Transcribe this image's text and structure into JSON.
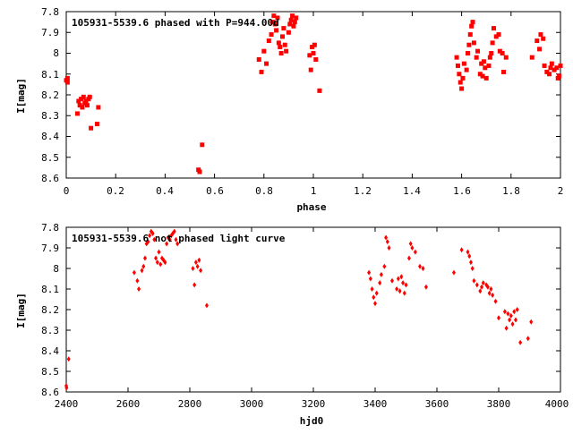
{
  "chart_data": [
    {
      "type": "scatter",
      "title": "105931-5539.6 phased with P=944.00d",
      "xlabel": "phase",
      "ylabel": "I[mag]",
      "xlim": [
        0,
        2
      ],
      "ylim": [
        8.6,
        7.8
      ],
      "y_inverted": true,
      "grid": false,
      "marker_color": "#ff0000",
      "marker": "filled square",
      "xticks": [
        "0",
        "0.2",
        "0.4",
        "0.6",
        "0.8",
        "1",
        "1.2",
        "1.4",
        "1.6",
        "1.8",
        "2"
      ],
      "yticks": [
        "7.8",
        "7.9",
        "8",
        "8.1",
        "8.2",
        "8.3",
        "8.4",
        "8.5",
        "8.6"
      ],
      "points": [
        [
          0.0,
          8.13
        ],
        [
          0.005,
          8.14
        ],
        [
          0.005,
          8.12
        ],
        [
          0.045,
          8.29
        ],
        [
          0.05,
          8.23
        ],
        [
          0.055,
          8.25
        ],
        [
          0.06,
          8.22
        ],
        [
          0.065,
          8.26
        ],
        [
          0.07,
          8.21
        ],
        [
          0.075,
          8.24
        ],
        [
          0.08,
          8.23
        ],
        [
          0.085,
          8.25
        ],
        [
          0.09,
          8.22
        ],
        [
          0.095,
          8.21
        ],
        [
          0.1,
          8.36
        ],
        [
          0.125,
          8.34
        ],
        [
          0.13,
          8.26
        ],
        [
          0.535,
          8.56
        ],
        [
          0.54,
          8.57
        ],
        [
          0.55,
          8.44
        ],
        [
          0.78,
          8.03
        ],
        [
          0.79,
          8.09
        ],
        [
          0.8,
          7.99
        ],
        [
          0.81,
          8.05
        ],
        [
          0.82,
          7.94
        ],
        [
          0.83,
          7.91
        ],
        [
          0.835,
          7.85
        ],
        [
          0.84,
          7.82
        ],
        [
          0.845,
          7.86
        ],
        [
          0.85,
          7.89
        ],
        [
          0.855,
          7.83
        ],
        [
          0.86,
          7.95
        ],
        [
          0.865,
          7.97
        ],
        [
          0.87,
          8.0
        ],
        [
          0.875,
          7.92
        ],
        [
          0.88,
          7.88
        ],
        [
          0.885,
          7.96
        ],
        [
          0.89,
          7.99
        ],
        [
          0.9,
          7.9
        ],
        [
          0.905,
          7.86
        ],
        [
          0.91,
          7.84
        ],
        [
          0.915,
          7.82
        ],
        [
          0.92,
          7.87
        ],
        [
          0.925,
          7.85
        ],
        [
          0.93,
          7.83
        ],
        [
          0.985,
          8.01
        ],
        [
          0.99,
          8.08
        ],
        [
          0.995,
          7.97
        ],
        [
          1.0,
          8.0
        ],
        [
          1.005,
          7.96
        ],
        [
          1.01,
          8.03
        ],
        [
          1.025,
          8.18
        ],
        [
          1.58,
          8.02
        ],
        [
          1.585,
          8.06
        ],
        [
          1.59,
          8.1
        ],
        [
          1.595,
          8.14
        ],
        [
          1.6,
          8.17
        ],
        [
          1.605,
          8.12
        ],
        [
          1.61,
          8.05
        ],
        [
          1.62,
          8.08
        ],
        [
          1.625,
          8.0
        ],
        [
          1.63,
          7.96
        ],
        [
          1.635,
          7.91
        ],
        [
          1.64,
          7.87
        ],
        [
          1.645,
          7.85
        ],
        [
          1.65,
          7.95
        ],
        [
          1.66,
          8.02
        ],
        [
          1.665,
          7.99
        ],
        [
          1.675,
          8.1
        ],
        [
          1.68,
          8.05
        ],
        [
          1.685,
          8.11
        ],
        [
          1.69,
          8.04
        ],
        [
          1.695,
          8.07
        ],
        [
          1.7,
          8.12
        ],
        [
          1.71,
          8.06
        ],
        [
          1.715,
          8.02
        ],
        [
          1.72,
          8.0
        ],
        [
          1.725,
          7.95
        ],
        [
          1.73,
          7.88
        ],
        [
          1.74,
          7.92
        ],
        [
          1.75,
          7.91
        ],
        [
          1.755,
          7.99
        ],
        [
          1.765,
          8.0
        ],
        [
          1.77,
          8.09
        ],
        [
          1.78,
          8.02
        ],
        [
          1.885,
          8.02
        ],
        [
          1.905,
          7.94
        ],
        [
          1.915,
          7.98
        ],
        [
          1.92,
          7.91
        ],
        [
          1.93,
          7.93
        ],
        [
          1.935,
          8.06
        ],
        [
          1.945,
          8.09
        ],
        [
          1.955,
          8.1
        ],
        [
          1.96,
          8.07
        ],
        [
          1.965,
          8.05
        ],
        [
          1.975,
          8.08
        ],
        [
          1.985,
          8.07
        ],
        [
          1.99,
          8.12
        ],
        [
          1.995,
          8.11
        ],
        [
          2.0,
          8.06
        ]
      ]
    },
    {
      "type": "scatter",
      "title": "105931-5539.6 not phased light curve",
      "xlabel": "hjd0",
      "ylabel": "I[mag]",
      "xlim": [
        2400,
        4000
      ],
      "ylim": [
        8.6,
        7.8
      ],
      "y_inverted": true,
      "grid": false,
      "marker_color": "#ff0000",
      "marker": "filled diamond",
      "xticks": [
        "2400",
        "2600",
        "2800",
        "3000",
        "3200",
        "3400",
        "3600",
        "3800",
        "4000"
      ],
      "yticks": [
        "7.8",
        "7.9",
        "8",
        "8.1",
        "8.2",
        "8.3",
        "8.4",
        "8.5",
        "8.6"
      ],
      "points": [
        [
          2400,
          8.57
        ],
        [
          2401,
          8.58
        ],
        [
          2408,
          8.44
        ],
        [
          2620,
          8.02
        ],
        [
          2630,
          8.06
        ],
        [
          2635,
          8.1
        ],
        [
          2645,
          8.01
        ],
        [
          2650,
          7.99
        ],
        [
          2655,
          7.95
        ],
        [
          2660,
          7.88
        ],
        [
          2665,
          7.87
        ],
        [
          2670,
          7.84
        ],
        [
          2675,
          7.82
        ],
        [
          2680,
          7.83
        ],
        [
          2685,
          7.86
        ],
        [
          2690,
          7.95
        ],
        [
          2695,
          7.97
        ],
        [
          2700,
          7.92
        ],
        [
          2705,
          7.98
        ],
        [
          2710,
          7.95
        ],
        [
          2715,
          7.96
        ],
        [
          2720,
          7.97
        ],
        [
          2725,
          7.88
        ],
        [
          2730,
          7.85
        ],
        [
          2735,
          7.86
        ],
        [
          2740,
          7.84
        ],
        [
          2745,
          7.83
        ],
        [
          2750,
          7.82
        ],
        [
          2755,
          7.86
        ],
        [
          2760,
          7.88
        ],
        [
          2810,
          8.0
        ],
        [
          2815,
          8.08
        ],
        [
          2820,
          7.97
        ],
        [
          2825,
          7.99
        ],
        [
          2830,
          7.96
        ],
        [
          2835,
          8.01
        ],
        [
          2855,
          8.18
        ],
        [
          3380,
          8.02
        ],
        [
          3385,
          8.05
        ],
        [
          3390,
          8.1
        ],
        [
          3395,
          8.14
        ],
        [
          3400,
          8.17
        ],
        [
          3405,
          8.12
        ],
        [
          3415,
          8.07
        ],
        [
          3420,
          8.03
        ],
        [
          3430,
          7.99
        ],
        [
          3435,
          7.85
        ],
        [
          3440,
          7.87
        ],
        [
          3445,
          7.9
        ],
        [
          3455,
          8.06
        ],
        [
          3470,
          8.1
        ],
        [
          3475,
          8.05
        ],
        [
          3480,
          8.11
        ],
        [
          3485,
          8.04
        ],
        [
          3490,
          8.07
        ],
        [
          3495,
          8.12
        ],
        [
          3500,
          8.08
        ],
        [
          3510,
          7.95
        ],
        [
          3515,
          7.88
        ],
        [
          3520,
          7.9
        ],
        [
          3530,
          7.92
        ],
        [
          3545,
          7.99
        ],
        [
          3555,
          8.0
        ],
        [
          3565,
          8.09
        ],
        [
          3655,
          8.02
        ],
        [
          3680,
          7.91
        ],
        [
          3700,
          7.92
        ],
        [
          3705,
          7.94
        ],
        [
          3710,
          7.97
        ],
        [
          3715,
          8.0
        ],
        [
          3720,
          8.06
        ],
        [
          3730,
          8.08
        ],
        [
          3740,
          8.11
        ],
        [
          3745,
          8.09
        ],
        [
          3750,
          8.07
        ],
        [
          3760,
          8.08
        ],
        [
          3765,
          8.09
        ],
        [
          3770,
          8.12
        ],
        [
          3775,
          8.1
        ],
        [
          3780,
          8.13
        ],
        [
          3790,
          8.16
        ],
        [
          3800,
          8.24
        ],
        [
          3820,
          8.21
        ],
        [
          3825,
          8.29
        ],
        [
          3830,
          8.22
        ],
        [
          3835,
          8.25
        ],
        [
          3840,
          8.23
        ],
        [
          3845,
          8.27
        ],
        [
          3850,
          8.21
        ],
        [
          3855,
          8.25
        ],
        [
          3860,
          8.2
        ],
        [
          3870,
          8.36
        ],
        [
          3895,
          8.34
        ],
        [
          3905,
          8.26
        ]
      ]
    }
  ]
}
